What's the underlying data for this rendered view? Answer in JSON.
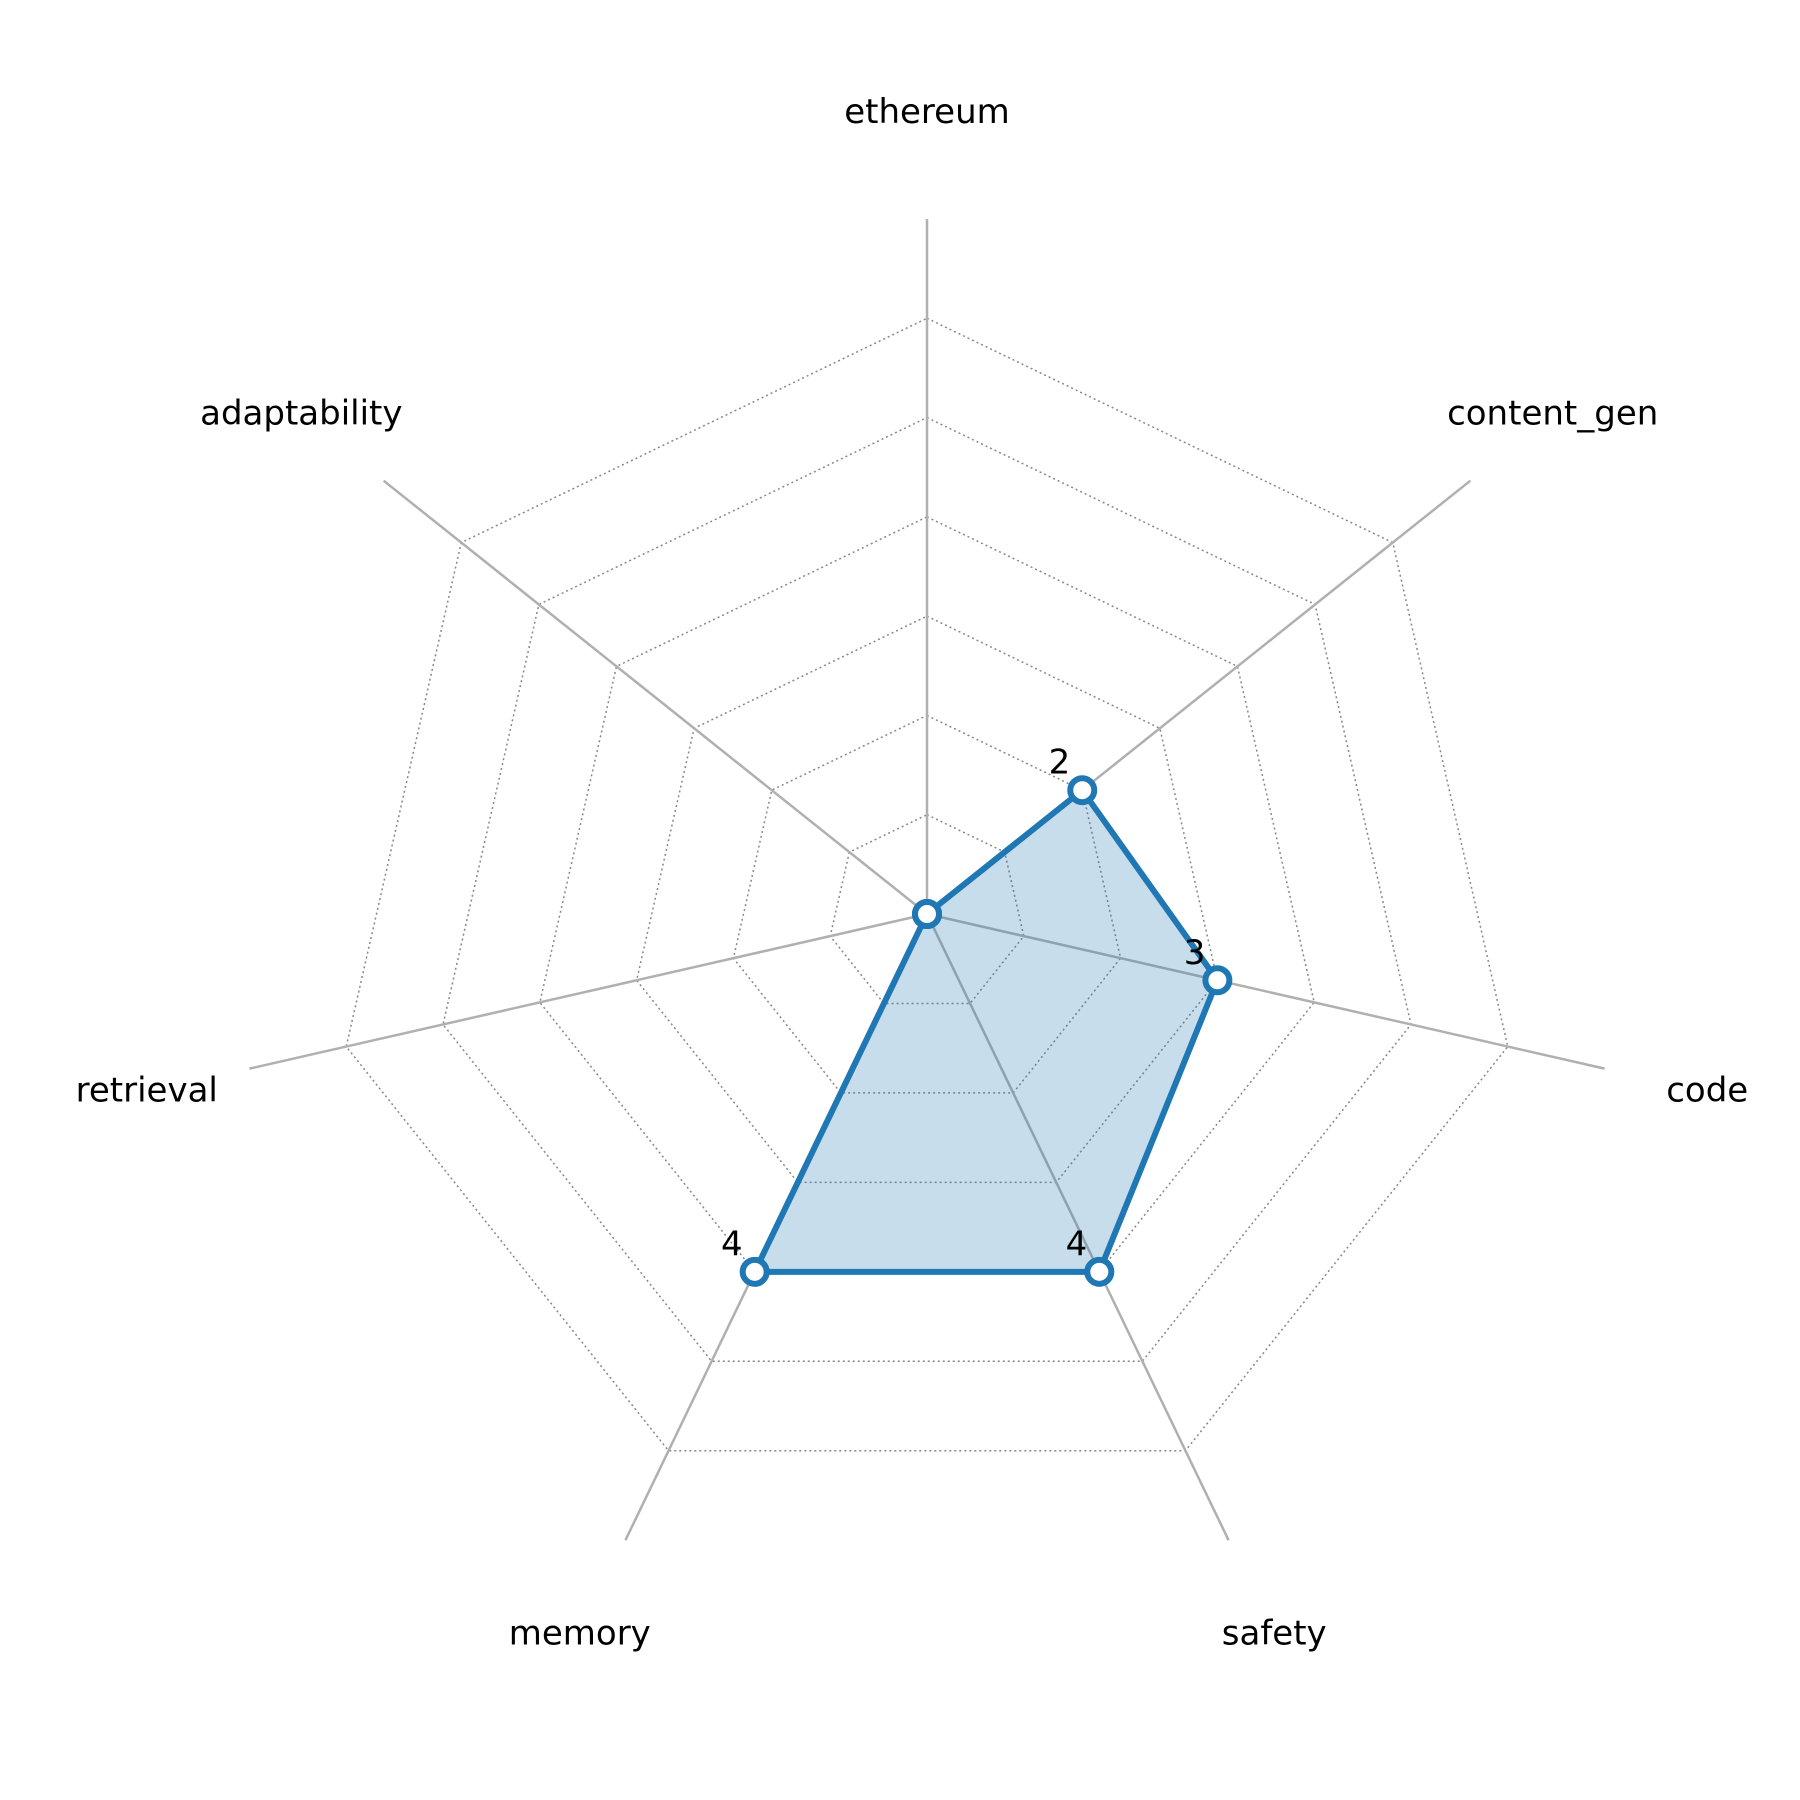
{
  "chart_data": {
    "type": "radar",
    "categories": [
      "ethereum",
      "content_gen",
      "code",
      "safety",
      "memory",
      "retrieval",
      "adaptability"
    ],
    "series": [
      {
        "color": "#1f77b4",
        "values": [
          0,
          2,
          3,
          4,
          4,
          0,
          0
        ]
      }
    ],
    "ylim": [
      0,
      7
    ],
    "yticks": [
      1,
      2,
      3,
      4,
      5,
      6
    ],
    "grid": true
  }
}
